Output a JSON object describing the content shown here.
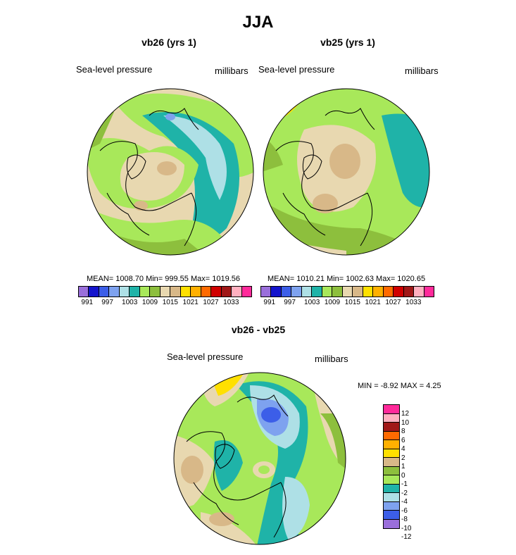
{
  "title": "JJA",
  "panels": [
    {
      "title": "vb26 (yrs 1)",
      "left_label": "Sea-level pressure",
      "right_label": "millibars",
      "stats": "MEAN= 1008.70  Min= 999.55  Max= 1019.56"
    },
    {
      "title": "vb25 (yrs 1)",
      "left_label": "Sea-level pressure",
      "right_label": "millibars",
      "stats": "MEAN= 1010.21  Min= 1002.63  Max= 1020.65"
    },
    {
      "title": "vb26 - vb25",
      "left_label": "Sea-level pressure",
      "right_label": "millibars",
      "stats": "MIN =  -8.92 MAX =   4.25"
    }
  ],
  "abs_colorbar": {
    "colors": [
      "#9a6fdb",
      "#1414cc",
      "#3c5ee8",
      "#7ea2ef",
      "#aee0e6",
      "#1fb3a8",
      "#a8e85a",
      "#8dbf3d",
      "#e8d8b0",
      "#d8b888",
      "#ffe000",
      "#ffb000",
      "#ff6a00",
      "#d00000",
      "#a01818",
      "#ffb0c0",
      "#ff2a9a"
    ],
    "labels": [
      "991",
      "997",
      "1003",
      "1009",
      "1015",
      "1021",
      "1027",
      "1033"
    ]
  },
  "diff_colorbar": {
    "colors": [
      "#ff2a9a",
      "#ffb0c0",
      "#a01818",
      "#ff6a00",
      "#ffb000",
      "#ffe000",
      "#d8b888",
      "#8dbf3d",
      "#a8e85a",
      "#1fb3a8",
      "#aee0e6",
      "#7ea2ef",
      "#3c5ee8",
      "#9a6fdb"
    ],
    "labels": [
      "12",
      "10",
      "8",
      "6",
      "4",
      "2",
      "1",
      "0",
      "-1",
      "-2",
      "-4",
      "-6",
      "-8",
      "-10",
      "-12"
    ]
  }
}
